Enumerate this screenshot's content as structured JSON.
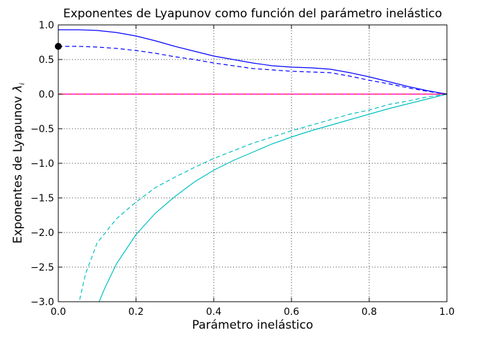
{
  "chart_data": {
    "type": "line",
    "title": "Exponentes de Lyapunov como función del parámetro inelástico",
    "xlabel": "Parámetro inelástico",
    "ylabel": "Exponentes de Lyapunov",
    "ylabel_symbol": "λ",
    "ylabel_subscript": "i",
    "xlim": [
      0.0,
      1.0
    ],
    "ylim": [
      -3.0,
      1.0
    ],
    "xticks": [
      "0.0",
      "0.2",
      "0.4",
      "0.6",
      "0.8",
      "1.0"
    ],
    "yticks": [
      "1.0",
      "0.5",
      "0.0",
      "−0.5",
      "−1.0",
      "−1.5",
      "−2.0",
      "−2.5",
      "−3.0"
    ],
    "grid": true,
    "series": [
      {
        "color": "#0000ff",
        "style": "solid",
        "x": [
          0.0,
          0.05,
          0.1,
          0.15,
          0.2,
          0.25,
          0.3,
          0.35,
          0.4,
          0.45,
          0.5,
          0.55,
          0.6,
          0.65,
          0.7,
          0.75,
          0.8,
          0.85,
          0.9,
          0.95,
          1.0
        ],
        "y": [
          0.93,
          0.93,
          0.92,
          0.89,
          0.84,
          0.77,
          0.69,
          0.62,
          0.55,
          0.5,
          0.45,
          0.41,
          0.39,
          0.38,
          0.36,
          0.31,
          0.25,
          0.18,
          0.11,
          0.05,
          0.0
        ]
      },
      {
        "color": "#0000ff",
        "style": "dashed",
        "x": [
          0.0,
          0.05,
          0.1,
          0.15,
          0.2,
          0.25,
          0.3,
          0.35,
          0.4,
          0.45,
          0.5,
          0.55,
          0.6,
          0.65,
          0.7,
          0.75,
          0.8,
          0.85,
          0.9,
          0.95,
          1.0
        ],
        "y": [
          0.69,
          0.69,
          0.68,
          0.66,
          0.63,
          0.59,
          0.54,
          0.5,
          0.45,
          0.41,
          0.37,
          0.35,
          0.33,
          0.32,
          0.31,
          0.26,
          0.2,
          0.15,
          0.09,
          0.04,
          0.0
        ]
      },
      {
        "color": "#ff0000",
        "style": "solid",
        "x": [
          0.0,
          1.0
        ],
        "y": [
          0.0,
          0.0
        ]
      },
      {
        "color": "#ff00ff",
        "style": "dashed",
        "x": [
          0.0,
          1.0
        ],
        "y": [
          0.0,
          0.0
        ]
      },
      {
        "color": "#00bfbf",
        "style": "dashed",
        "x": [
          0.055,
          0.07,
          0.1,
          0.15,
          0.2,
          0.25,
          0.3,
          0.35,
          0.4,
          0.45,
          0.5,
          0.55,
          0.6,
          0.65,
          0.7,
          0.75,
          0.8,
          0.85,
          0.9,
          0.95,
          1.0
        ],
        "y": [
          -2.97,
          -2.6,
          -2.15,
          -1.8,
          -1.56,
          -1.35,
          -1.2,
          -1.06,
          -0.93,
          -0.82,
          -0.71,
          -0.62,
          -0.53,
          -0.45,
          -0.37,
          -0.29,
          -0.23,
          -0.15,
          -0.1,
          -0.04,
          0.0
        ]
      },
      {
        "color": "#00bfbf",
        "style": "solid",
        "x": [
          0.105,
          0.12,
          0.15,
          0.2,
          0.25,
          0.3,
          0.35,
          0.4,
          0.45,
          0.5,
          0.55,
          0.6,
          0.65,
          0.7,
          0.75,
          0.8,
          0.85,
          0.9,
          0.95,
          1.0
        ],
        "y": [
          -3.0,
          -2.8,
          -2.45,
          -2.03,
          -1.72,
          -1.48,
          -1.27,
          -1.1,
          -0.96,
          -0.84,
          -0.72,
          -0.62,
          -0.53,
          -0.45,
          -0.37,
          -0.29,
          -0.21,
          -0.14,
          -0.07,
          0.0
        ]
      }
    ],
    "markers": [
      {
        "x": 0.0,
        "y": 0.69,
        "color": "#000000"
      }
    ]
  }
}
